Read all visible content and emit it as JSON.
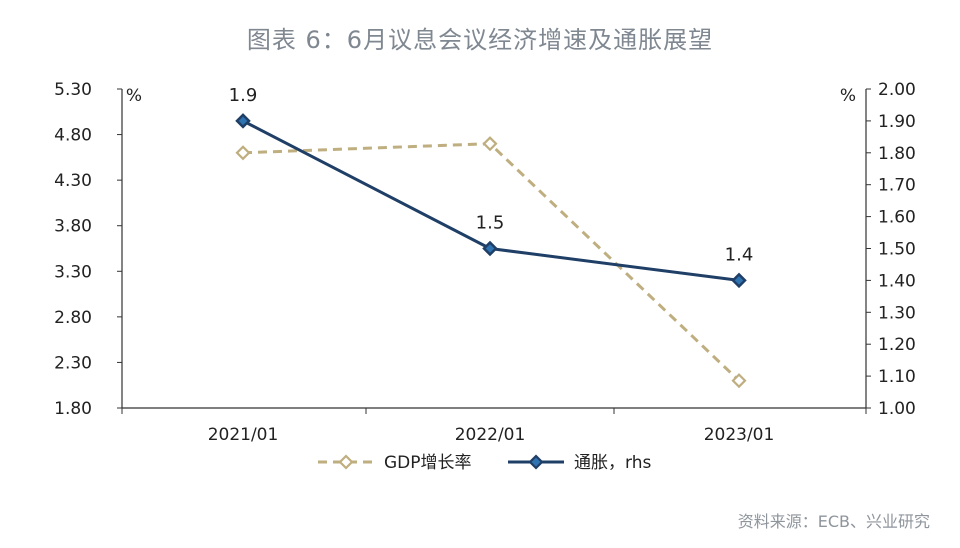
{
  "title": "图表 6：6月议息会议经济增速及通胀展望",
  "source": "资料来源：ECB、兴业研究",
  "chart_data": {
    "type": "line",
    "title": "图表 6：6月议息会议经济增速及通胀展望",
    "categories": [
      "2021/01",
      "2022/01",
      "2023/01"
    ],
    "y_left": {
      "unit_label": "%",
      "min": 1.8,
      "max": 5.3,
      "ticks": [
        "1.80",
        "2.30",
        "2.80",
        "3.30",
        "3.80",
        "4.30",
        "4.80",
        "5.30"
      ]
    },
    "y_right": {
      "unit_label": "%",
      "min": 1.0,
      "max": 2.0,
      "ticks": [
        "1.00",
        "1.10",
        "1.20",
        "1.30",
        "1.40",
        "1.50",
        "1.60",
        "1.70",
        "1.80",
        "1.90",
        "2.00"
      ]
    },
    "series": [
      {
        "name": "GDP增长率",
        "axis": "left",
        "values": [
          4.6,
          4.7,
          2.1
        ],
        "color": "#bfae7f",
        "style": "dashed",
        "data_labels": [
          "",
          "",
          ""
        ]
      },
      {
        "name": "通胀，rhs",
        "axis": "right",
        "values": [
          1.9,
          1.5,
          1.4
        ],
        "color": "#1f3f67",
        "style": "solid",
        "data_labels": [
          "1.9",
          "1.5",
          "1.4"
        ]
      }
    ],
    "legend_position": "bottom",
    "grid": false
  }
}
